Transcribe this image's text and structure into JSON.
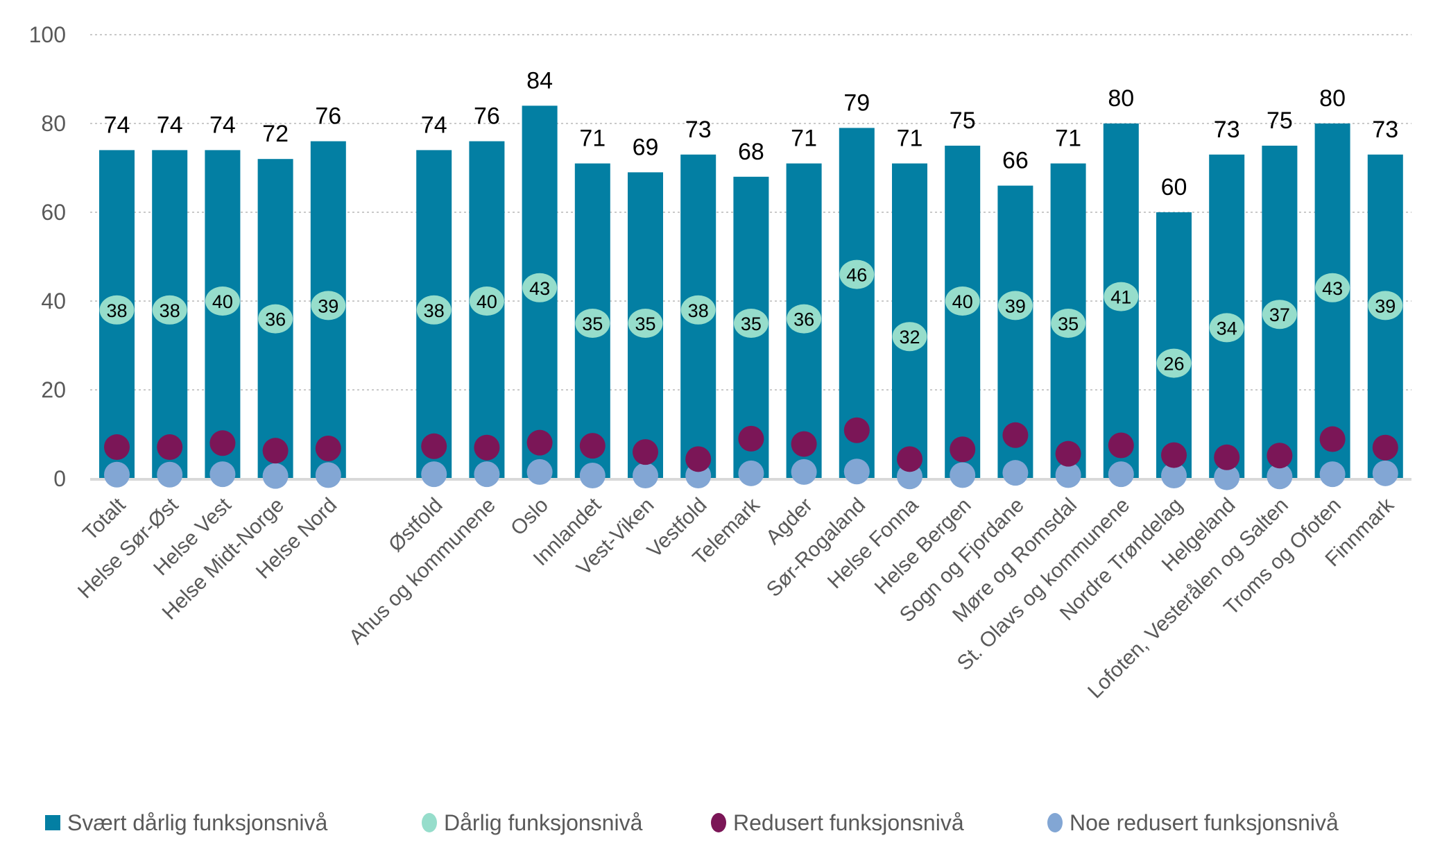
{
  "chart_data": {
    "type": "bar",
    "title": "",
    "xlabel": "",
    "ylabel": "",
    "ylim": [
      0,
      100
    ],
    "yticks": [
      0,
      20,
      40,
      60,
      80,
      100
    ],
    "grid": true,
    "legend_position": "bottom",
    "categories": [
      "Totalt",
      "Helse Sør-Øst",
      "Helse Vest",
      "Helse Midt-Norge",
      "Helse Nord",
      "",
      "Østfold",
      "Ahus og kommunene",
      "Oslo",
      "Innlandet",
      "Vest-Viken",
      "Vestfold",
      "Telemark",
      "Agder",
      "Sør-Rogaland",
      "Helse Fonna",
      "Helse Bergen",
      "Sogn og Fjordane",
      "Møre og Romsdal",
      "St. Olavs og kommunene",
      "Nordre Trøndelag",
      "Helgeland",
      "Lofoten, Vesterålen og Salten",
      "Troms og Ofoten",
      "Finnmark"
    ],
    "series": [
      {
        "name": "Svært dårlig funksjonsnivå",
        "kind": "bar",
        "color": "#037fa3",
        "show_labels": true,
        "values": [
          74,
          74,
          74,
          72,
          76,
          null,
          74,
          76,
          84,
          71,
          69,
          73,
          68,
          71,
          79,
          71,
          75,
          66,
          71,
          80,
          60,
          73,
          75,
          80,
          73
        ]
      },
      {
        "name": "Dårlig funksjonsnivå",
        "kind": "dot",
        "color": "#96ddcb",
        "show_labels": true,
        "values": [
          38,
          38,
          40,
          36,
          39,
          null,
          38,
          40,
          43,
          35,
          35,
          38,
          35,
          36,
          46,
          32,
          40,
          39,
          35,
          41,
          26,
          34,
          37,
          43,
          39
        ]
      },
      {
        "name": "Redusert funksjonsnivå",
        "kind": "dot",
        "color": "#7b1657",
        "show_labels": false,
        "values": [
          7.1,
          7.1,
          8.0,
          6.3,
          6.8,
          null,
          7.3,
          7.0,
          8.1,
          7.4,
          6.0,
          4.4,
          9.0,
          7.8,
          10.9,
          4.4,
          6.6,
          9.8,
          5.6,
          7.5,
          5.3,
          4.8,
          5.2,
          8.9,
          7.0
        ]
      },
      {
        "name": "Noe redusert funksjonsnivå",
        "kind": "dot",
        "color": "#82a6d4",
        "show_labels": false,
        "values": [
          0.9,
          0.9,
          1.0,
          0.6,
          0.8,
          null,
          1.0,
          1.0,
          1.5,
          0.7,
          0.7,
          0.7,
          1.2,
          1.5,
          1.6,
          0.5,
          0.8,
          1.3,
          0.8,
          1.0,
          0.7,
          0.3,
          0.5,
          1.0,
          1.2
        ]
      }
    ]
  }
}
